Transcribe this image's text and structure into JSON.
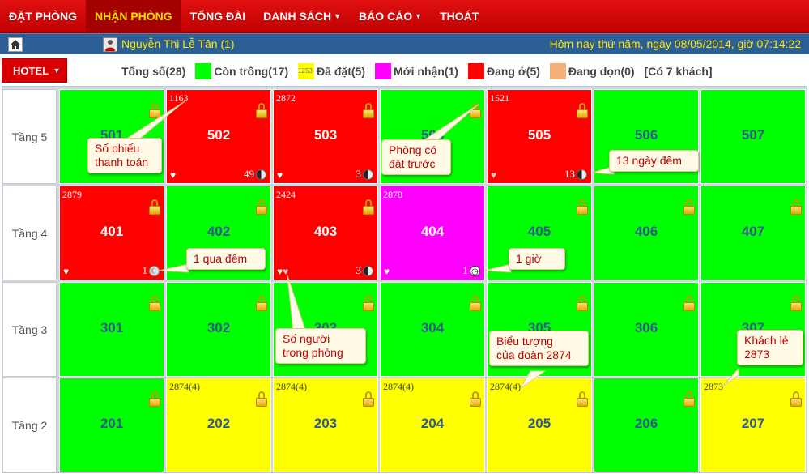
{
  "nav": [
    {
      "label": "ĐẶT PHÒNG",
      "caret": ""
    },
    {
      "label": "NHẬN PHÒNG",
      "caret": "",
      "active": true
    },
    {
      "label": "TỔNG ĐÀI",
      "caret": ""
    },
    {
      "label": "DANH SÁCH",
      "caret": "▼"
    },
    {
      "label": "BÁO CÁO",
      "caret": "▼"
    },
    {
      "label": "THOÁT",
      "caret": ""
    }
  ],
  "status": {
    "user": "Nguyễn Thị Lễ Tân  (1)",
    "datetime": "Hôm nay thứ năm, ngày 08/05/2014, giờ 07:14:22"
  },
  "hotel_button": "HOTEL",
  "legend": {
    "total": "Tổng số(28)",
    "empty": "Còn trống(17)",
    "booked_sample": "1253",
    "booked": "Đã đặt(5)",
    "new": "Mới nhận(1)",
    "occupied": "Đang ở(5)",
    "cleaning": "Đang dọn(0)",
    "guests": "[Có 7 khách]",
    "colors": {
      "empty": "#00ff00",
      "booked": "#ffff00",
      "new": "#ff00ff",
      "occupied": "#ff0000",
      "cleaning": "#f4b07a"
    }
  },
  "floors": [
    {
      "label": "Tầng 5",
      "rooms": [
        {
          "num": "501",
          "status": "empty"
        },
        {
          "num": "502",
          "status": "occupied",
          "ticket": "1163",
          "hearts": 1,
          "count": "49",
          "icon": "yinyang"
        },
        {
          "num": "503",
          "status": "occupied",
          "ticket": "2872",
          "hearts": 1,
          "count": "3",
          "icon": "yinyang"
        },
        {
          "num": "504",
          "status": "empty"
        },
        {
          "num": "505",
          "status": "occupied",
          "ticket": "1521",
          "hearts": 1,
          "grey_heart": true,
          "count": "13",
          "icon": "yinyang"
        },
        {
          "num": "506",
          "status": "empty",
          "nolock": true
        },
        {
          "num": "507",
          "status": "empty",
          "nolock": true
        }
      ]
    },
    {
      "label": "Tầng 4",
      "rooms": [
        {
          "num": "401",
          "status": "occupied",
          "ticket": "2879",
          "hearts": 1,
          "count": "1",
          "icon": "moon"
        },
        {
          "num": "402",
          "status": "empty"
        },
        {
          "num": "403",
          "status": "occupied",
          "ticket": "2424",
          "hearts": 2,
          "count": "3",
          "icon": "yinyang"
        },
        {
          "num": "404",
          "status": "new",
          "ticket": "2878",
          "hearts": 1,
          "count": "1",
          "icon": "clock",
          "nolock": true
        },
        {
          "num": "405",
          "status": "empty"
        },
        {
          "num": "406",
          "status": "empty"
        },
        {
          "num": "407",
          "status": "empty"
        }
      ]
    },
    {
      "label": "Tầng 3",
      "rooms": [
        {
          "num": "301",
          "status": "empty"
        },
        {
          "num": "302",
          "status": "empty"
        },
        {
          "num": "303",
          "status": "empty"
        },
        {
          "num": "304",
          "status": "empty"
        },
        {
          "num": "305",
          "status": "empty"
        },
        {
          "num": "306",
          "status": "empty"
        },
        {
          "num": "307",
          "status": "empty"
        }
      ]
    },
    {
      "label": "Tầng 2",
      "rooms": [
        {
          "num": "201",
          "status": "empty"
        },
        {
          "num": "202",
          "status": "booked",
          "ticket": "2874(4)"
        },
        {
          "num": "203",
          "status": "booked",
          "ticket": "2874(4)"
        },
        {
          "num": "204",
          "status": "booked",
          "ticket": "2874(4)"
        },
        {
          "num": "205",
          "status": "booked",
          "ticket": "2874(4)"
        },
        {
          "num": "206",
          "status": "empty"
        },
        {
          "num": "207",
          "status": "booked",
          "ticket": "2873"
        }
      ]
    }
  ],
  "callouts": [
    {
      "key": "ticket",
      "text": "Số phiếu\nthanh toán"
    },
    {
      "key": "prebooked",
      "text": "Phòng có\nđặt trước"
    },
    {
      "key": "nights13",
      "text": "13 ngày đêm"
    },
    {
      "key": "overnight",
      "text": "1 qua đêm"
    },
    {
      "key": "hour",
      "text": "1 giờ"
    },
    {
      "key": "people",
      "text": "Số người\ntrong phòng"
    },
    {
      "key": "group",
      "text": "Biểu tượng\ncủa đoàn 2874"
    },
    {
      "key": "walkin",
      "text": "Khách lẻ\n2873"
    }
  ]
}
